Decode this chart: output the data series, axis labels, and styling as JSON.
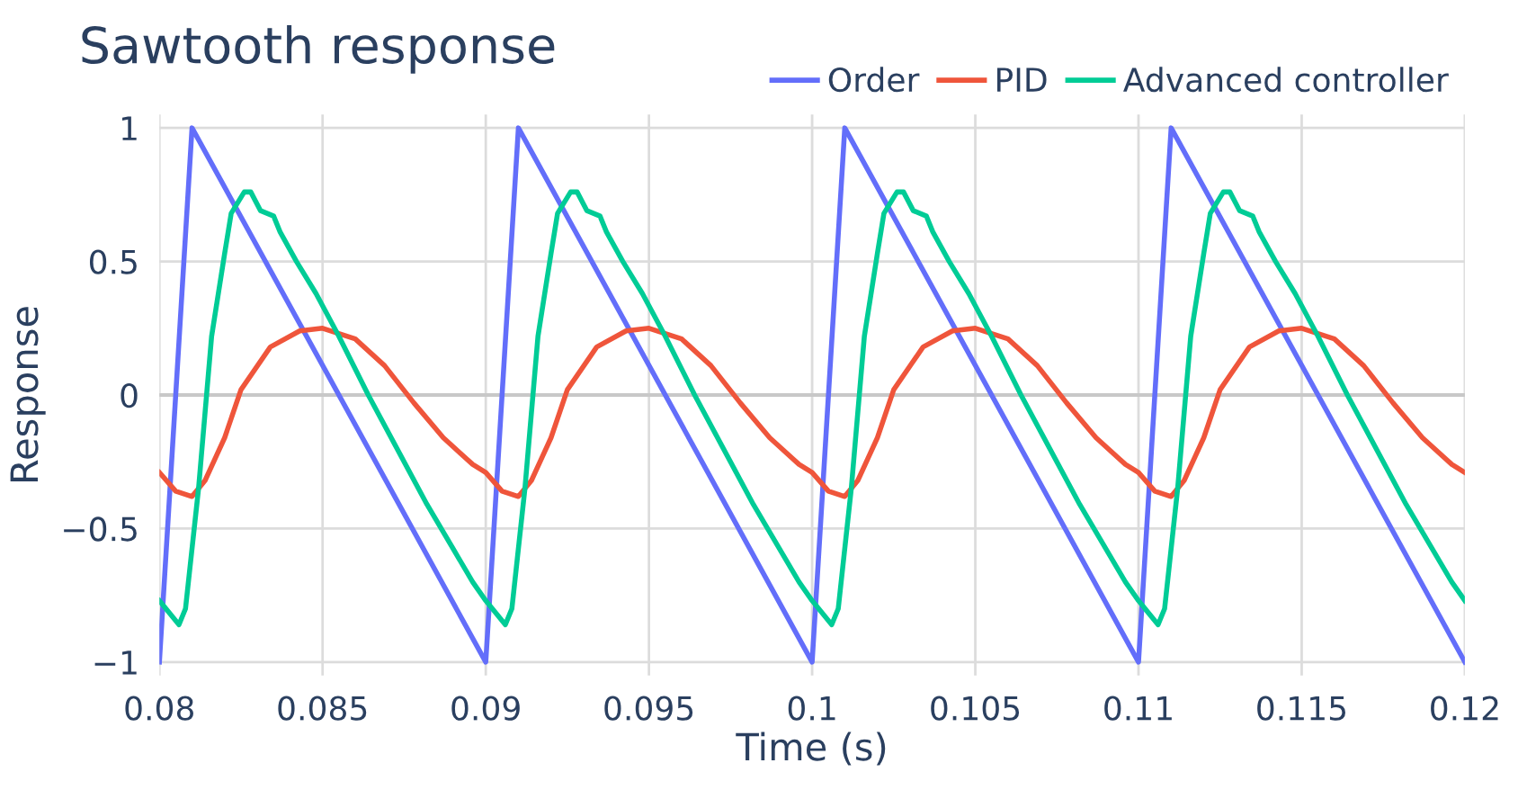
{
  "chart_data": {
    "type": "line",
    "title": "Sawtooth response",
    "xlabel": "Time (s)",
    "ylabel": "Response",
    "xlim": [
      0.08,
      0.12
    ],
    "ylim": [
      -1.05,
      1.05
    ],
    "xticks": [
      0.08,
      0.085,
      0.09,
      0.095,
      0.1,
      0.105,
      0.11,
      0.115,
      0.12
    ],
    "yticks": [
      {
        "value": -1,
        "label": "−1"
      },
      {
        "value": -0.5,
        "label": "−0.5"
      },
      0,
      0.5,
      1
    ],
    "grid": true,
    "legend": "top right",
    "line_style": "solid",
    "marker": "none",
    "series": [
      {
        "name": "Order",
        "color": "#636efa",
        "x": [
          0.08,
          0.081,
          0.09,
          0.091,
          0.1,
          0.101,
          0.11,
          0.111,
          0.12
        ],
        "values": [
          -1,
          1,
          -1,
          1,
          -1,
          1,
          -1,
          1,
          -1
        ]
      },
      {
        "name": "PID",
        "color": "#ef553b",
        "x": [
          0.08,
          0.0805,
          0.081,
          0.0814,
          0.082,
          0.0825,
          0.0834,
          0.0843,
          0.085,
          0.086,
          0.0869,
          0.0878,
          0.0887,
          0.0896,
          0.09,
          0.0905,
          0.091,
          0.0914,
          0.092,
          0.0925,
          0.0934,
          0.0943,
          0.095,
          0.096,
          0.0969,
          0.0978,
          0.0987,
          0.0996,
          0.1,
          0.1005,
          0.101,
          0.1014,
          0.102,
          0.1025,
          0.1034,
          0.1043,
          0.105,
          0.106,
          0.1069,
          0.1078,
          0.1087,
          0.1096,
          0.11,
          0.1105,
          0.111,
          0.1114,
          0.112,
          0.1125,
          0.1134,
          0.1143,
          0.115,
          0.116,
          0.1169,
          0.1178,
          0.1187,
          0.1196,
          0.12
        ],
        "values": [
          -0.29,
          -0.36,
          -0.38,
          -0.32,
          -0.16,
          0.02,
          0.18,
          0.24,
          0.25,
          0.21,
          0.11,
          -0.03,
          -0.16,
          -0.26,
          -0.29,
          -0.36,
          -0.38,
          -0.32,
          -0.16,
          0.02,
          0.18,
          0.24,
          0.25,
          0.21,
          0.11,
          -0.03,
          -0.16,
          -0.26,
          -0.29,
          -0.36,
          -0.38,
          -0.32,
          -0.16,
          0.02,
          0.18,
          0.24,
          0.25,
          0.21,
          0.11,
          -0.03,
          -0.16,
          -0.26,
          -0.29,
          -0.36,
          -0.38,
          -0.32,
          -0.16,
          0.02,
          0.18,
          0.24,
          0.25,
          0.21,
          0.11,
          -0.03,
          -0.16,
          -0.26,
          -0.29
        ]
      },
      {
        "name": "Advanced controller",
        "color": "#00cc96",
        "x": [
          0.08,
          0.0806,
          0.0808,
          0.0812,
          0.0816,
          0.082,
          0.0822,
          0.0826,
          0.0828,
          0.0831,
          0.0835,
          0.0837,
          0.0842,
          0.0848,
          0.0855,
          0.0864,
          0.0882,
          0.0896,
          0.09,
          0.0906,
          0.0908,
          0.0912,
          0.0916,
          0.092,
          0.0922,
          0.0926,
          0.0928,
          0.0931,
          0.0935,
          0.0937,
          0.0942,
          0.0948,
          0.0955,
          0.0964,
          0.0982,
          0.0996,
          0.1,
          0.1006,
          0.1008,
          0.1012,
          0.1016,
          0.102,
          0.1022,
          0.1026,
          0.1028,
          0.1031,
          0.1035,
          0.1037,
          0.1042,
          0.1048,
          0.1055,
          0.1064,
          0.1082,
          0.1096,
          0.11,
          0.1106,
          0.1108,
          0.1112,
          0.1116,
          0.112,
          0.1122,
          0.1126,
          0.1128,
          0.1131,
          0.1135,
          0.1137,
          0.1142,
          0.1148,
          0.1155,
          0.1164,
          0.1182,
          0.1196,
          0.12
        ],
        "values": [
          -0.77,
          -0.86,
          -0.8,
          -0.35,
          0.22,
          0.53,
          0.68,
          0.76,
          0.76,
          0.69,
          0.67,
          0.61,
          0.5,
          0.38,
          0.22,
          0.0,
          -0.41,
          -0.7,
          -0.77,
          -0.86,
          -0.8,
          -0.35,
          0.22,
          0.53,
          0.68,
          0.76,
          0.76,
          0.69,
          0.67,
          0.61,
          0.5,
          0.38,
          0.22,
          0.0,
          -0.41,
          -0.7,
          -0.77,
          -0.86,
          -0.8,
          -0.35,
          0.22,
          0.53,
          0.68,
          0.76,
          0.76,
          0.69,
          0.67,
          0.61,
          0.5,
          0.38,
          0.22,
          0.0,
          -0.41,
          -0.7,
          -0.77,
          -0.86,
          -0.8,
          -0.35,
          0.22,
          0.53,
          0.68,
          0.76,
          0.76,
          0.69,
          0.67,
          0.61,
          0.5,
          0.38,
          0.22,
          0.0,
          -0.41,
          -0.7,
          -0.77
        ]
      }
    ]
  }
}
